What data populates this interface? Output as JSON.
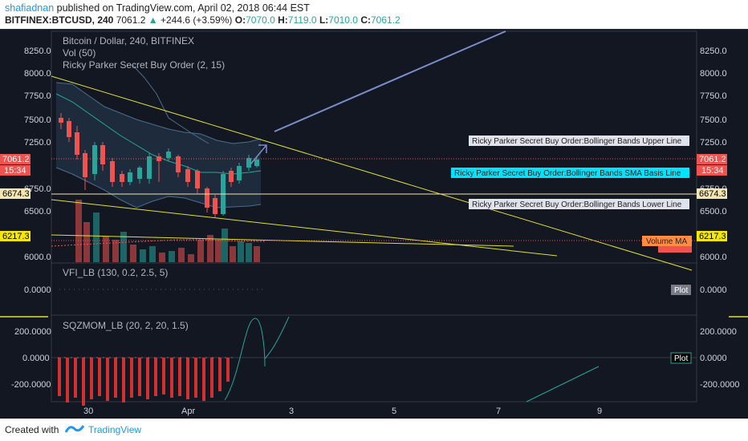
{
  "header": {
    "author": "shafiadnan",
    "published_text": " published on TradingView.com, April 02, 2018 06:44 EST",
    "symbol": "BITFINEX:BTCUSD, 240",
    "last": "7061.2",
    "change": "+244.6 (+3.59%)",
    "o_label": "O:",
    "o_value": "7070.0",
    "h_label": "H:",
    "h_value": "7119.0",
    "l_label": "L:",
    "l_value": "7010.0",
    "c_label": "C:",
    "c_value": "7061.2"
  },
  "panes": {
    "main": {
      "title": "Bitcoin / Dollar, 240, BITFINEX",
      "vol": "Vol (50)",
      "indicator": "Ricky Parker Secret  Buy Order (2, 15)",
      "y_ticks": [
        "8250.0",
        "8000.0",
        "7750.0",
        "7500.0",
        "7250.0",
        "6750.0",
        "6500.0",
        "6000.0"
      ],
      "right_ticks": [
        "8250.0",
        "8000.0",
        "7750.0",
        "7500.0",
        "7250.0",
        "6750.0",
        "6500.0",
        "6000.0"
      ],
      "price_tag": "7061.2",
      "time_tag": "15:34",
      "line_tag": "6674.3",
      "vol_tag": "6217.3",
      "upper_label": "Ricky Parker Secret  Buy Order:Bollinger Bands Upper Line",
      "basis_label": "Ricky Parker Secret  Buy Order:Bollinger Bands SMA Basis Line",
      "lower_label": "Ricky Parker Secret  Buy Order:Bollinger Bands Lower Line",
      "volume_ma_label": "Volume MA"
    },
    "vfi": {
      "title": "VFI_LB (130, 0.2, 2.5, 5)",
      "left_tick": "0.0000",
      "right_tick": "0.0000",
      "plot_label": "Plot"
    },
    "sqz": {
      "title": "SQZMOM_LB (20, 2, 20, 1.5)",
      "ticks": [
        "200.0000",
        "0.0000",
        "-200.0000"
      ],
      "right_ticks": [
        "200.0000",
        "0.0000",
        "-200.0000"
      ],
      "plot_label": "Plot"
    }
  },
  "x_axis": [
    "30",
    "Apr",
    "3",
    "5",
    "7",
    "9"
  ],
  "footer": {
    "created": "Created with",
    "brand": "TradingView"
  },
  "colors": {
    "bull": "#26a69a",
    "bear": "#ef5350",
    "trendline": "#e0e030",
    "projection": "#7b8ec8",
    "sqz_bar": "#d32f2f",
    "basis_tag": "#00e5ff"
  }
}
